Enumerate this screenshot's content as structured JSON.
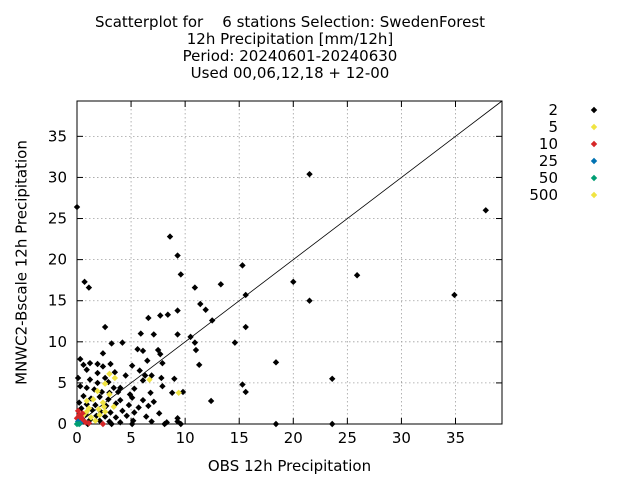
{
  "chart_data": {
    "type": "scatter",
    "title_lines": [
      "Scatterplot for    6 stations Selection: SwedenForest",
      "12h Precipitation [mm/12h]",
      "Period: 20240601-20240630",
      "Used 00,06,12,18 + 12-00"
    ],
    "xlabel": "OBS 12h Precipitation",
    "ylabel": "MNWC2-Bscale 12h Precipitation",
    "xlim": [
      0,
      39.3
    ],
    "ylim": [
      0,
      39.3
    ],
    "xticks": [
      0,
      5,
      10,
      15,
      20,
      25,
      30,
      35
    ],
    "yticks": [
      0,
      5,
      10,
      15,
      20,
      25,
      30,
      35
    ],
    "grid": true,
    "diagonal": true,
    "legend_position": "right",
    "series": [
      {
        "name": "2",
        "color": "#000000",
        "points": [
          [
            0,
            26.4
          ],
          [
            21.5,
            30.4
          ],
          [
            37.8,
            26.0
          ],
          [
            8.6,
            22.8
          ],
          [
            9.3,
            20.5
          ],
          [
            15.3,
            19.3
          ],
          [
            9.6,
            18.2
          ],
          [
            20.0,
            17.3
          ],
          [
            25.9,
            18.1
          ],
          [
            0.7,
            17.3
          ],
          [
            1.1,
            16.6
          ],
          [
            10.9,
            16.6
          ],
          [
            13.3,
            17.0
          ],
          [
            15.6,
            15.7
          ],
          [
            21.5,
            15.0
          ],
          [
            34.9,
            15.7
          ],
          [
            11.4,
            14.6
          ],
          [
            7.7,
            13.2
          ],
          [
            8.4,
            13.3
          ],
          [
            6.6,
            12.9
          ],
          [
            9.3,
            13.8
          ],
          [
            11.9,
            13.9
          ],
          [
            12.5,
            12.6
          ],
          [
            2.6,
            11.8
          ],
          [
            5.9,
            11.0
          ],
          [
            7.1,
            10.9
          ],
          [
            9.3,
            10.9
          ],
          [
            15.6,
            11.8
          ],
          [
            10.5,
            10.6
          ],
          [
            10.9,
            9.9
          ],
          [
            14.6,
            9.9
          ],
          [
            11.0,
            9.0
          ],
          [
            3.2,
            9.8
          ],
          [
            4.2,
            9.9
          ],
          [
            5.6,
            9.1
          ],
          [
            6.1,
            8.9
          ],
          [
            7.5,
            9.0
          ],
          [
            7.7,
            8.5
          ],
          [
            2.4,
            8.6
          ],
          [
            0.3,
            7.9
          ],
          [
            0.6,
            7.2
          ],
          [
            1.2,
            7.4
          ],
          [
            1.9,
            7.3
          ],
          [
            2.4,
            7.0
          ],
          [
            3.1,
            7.3
          ],
          [
            5.1,
            7.1
          ],
          [
            6.5,
            7.7
          ],
          [
            7.9,
            7.4
          ],
          [
            11.3,
            7.2
          ],
          [
            18.4,
            7.5
          ],
          [
            0.9,
            6.6
          ],
          [
            1.9,
            6.2
          ],
          [
            2.6,
            5.6
          ],
          [
            3.5,
            6.3
          ],
          [
            4.5,
            5.9
          ],
          [
            5.8,
            6.5
          ],
          [
            6.3,
            5.9
          ],
          [
            6.9,
            5.9
          ],
          [
            7.8,
            5.6
          ],
          [
            9.0,
            5.5
          ],
          [
            23.6,
            5.5
          ],
          [
            0.1,
            5.6
          ],
          [
            1.2,
            5.4
          ],
          [
            1.9,
            5.0
          ],
          [
            2.9,
            5.1
          ],
          [
            3.4,
            4.4
          ],
          [
            4.0,
            4.4
          ],
          [
            5.3,
            4.3
          ],
          [
            6.1,
            5.3
          ],
          [
            7.9,
            4.6
          ],
          [
            15.3,
            4.8
          ],
          [
            0.3,
            4.6
          ],
          [
            0.9,
            4.4
          ],
          [
            1.6,
            4.2
          ],
          [
            2.3,
            3.9
          ],
          [
            3.0,
            3.8
          ],
          [
            3.8,
            3.9
          ],
          [
            4.9,
            3.6
          ],
          [
            6.8,
            3.8
          ],
          [
            8.8,
            3.8
          ],
          [
            9.8,
            3.9
          ],
          [
            15.6,
            3.9
          ],
          [
            0.6,
            3.4
          ],
          [
            1.3,
            3.1
          ],
          [
            2.1,
            3.3
          ],
          [
            2.9,
            3.0
          ],
          [
            4.0,
            2.9
          ],
          [
            5.1,
            3.2
          ],
          [
            6.1,
            2.9
          ],
          [
            7.1,
            2.7
          ],
          [
            12.4,
            2.8
          ],
          [
            0.2,
            2.6
          ],
          [
            0.9,
            2.4
          ],
          [
            1.7,
            2.3
          ],
          [
            2.7,
            2.2
          ],
          [
            3.6,
            2.5
          ],
          [
            4.8,
            2.3
          ],
          [
            5.7,
            2.0
          ],
          [
            6.6,
            2.2
          ],
          [
            0.4,
            1.9
          ],
          [
            1.4,
            1.7
          ],
          [
            2.2,
            1.5
          ],
          [
            3.1,
            1.4
          ],
          [
            4.2,
            1.6
          ],
          [
            5.3,
            1.4
          ],
          [
            7.6,
            1.3
          ],
          [
            0.8,
            1.2
          ],
          [
            1.8,
            1.0
          ],
          [
            2.6,
            0.9
          ],
          [
            3.6,
            0.8
          ],
          [
            4.6,
            1.0
          ],
          [
            6.4,
            0.9
          ],
          [
            9.3,
            0.7
          ],
          [
            0.3,
            0.6
          ],
          [
            1.2,
            0.5
          ],
          [
            2.1,
            0.4
          ],
          [
            3.0,
            0.3
          ],
          [
            4.0,
            0.2
          ],
          [
            5.2,
            0.4
          ],
          [
            6.9,
            0.3
          ],
          [
            8.3,
            0.2
          ],
          [
            9.3,
            0.3
          ],
          [
            1.0,
            0.0
          ],
          [
            3.2,
            0.0
          ],
          [
            5.1,
            0.0
          ],
          [
            8.1,
            0.0
          ],
          [
            9.6,
            0.0
          ],
          [
            18.4,
            0.0
          ],
          [
            23.6,
            0.0
          ]
        ]
      },
      {
        "name": "5",
        "color": "#f0e442",
        "points": [
          [
            3.0,
            6.1
          ],
          [
            3.5,
            5.6
          ],
          [
            2.6,
            4.9
          ],
          [
            1.9,
            4.0
          ],
          [
            3.0,
            3.6
          ],
          [
            1.5,
            3.0
          ],
          [
            2.4,
            2.6
          ],
          [
            0.9,
            2.8
          ],
          [
            3.4,
            2.1
          ],
          [
            1.1,
            1.9
          ],
          [
            2.0,
            1.8
          ],
          [
            2.6,
            1.5
          ],
          [
            0.6,
            1.1
          ],
          [
            1.3,
            0.8
          ],
          [
            1.7,
            0.4
          ],
          [
            9.4,
            3.8
          ],
          [
            6.7,
            5.4
          ],
          [
            2.1,
            1.1
          ],
          [
            0.9,
            1.5
          ],
          [
            2.5,
            2.1
          ]
        ]
      },
      {
        "name": "10",
        "color": "#d62728",
        "points": [
          [
            0.1,
            1.6
          ],
          [
            0.2,
            1.1
          ],
          [
            0.4,
            0.8
          ],
          [
            0.6,
            0.4
          ],
          [
            0.8,
            0.2
          ],
          [
            1.1,
            0.1
          ],
          [
            0.2,
            0.4
          ],
          [
            0.5,
            1.3
          ],
          [
            2.4,
            0.0
          ],
          [
            0.0,
            0.7
          ]
        ]
      },
      {
        "name": "25",
        "color": "#0072b2",
        "points": [
          [
            0.1,
            0.3
          ],
          [
            0.3,
            0.1
          ]
        ]
      },
      {
        "name": "50",
        "color": "#009e73",
        "points": [
          [
            0.0,
            0.0
          ],
          [
            0.2,
            0.0
          ]
        ]
      },
      {
        "name": "500",
        "color": "#f0e442",
        "points": []
      }
    ]
  }
}
